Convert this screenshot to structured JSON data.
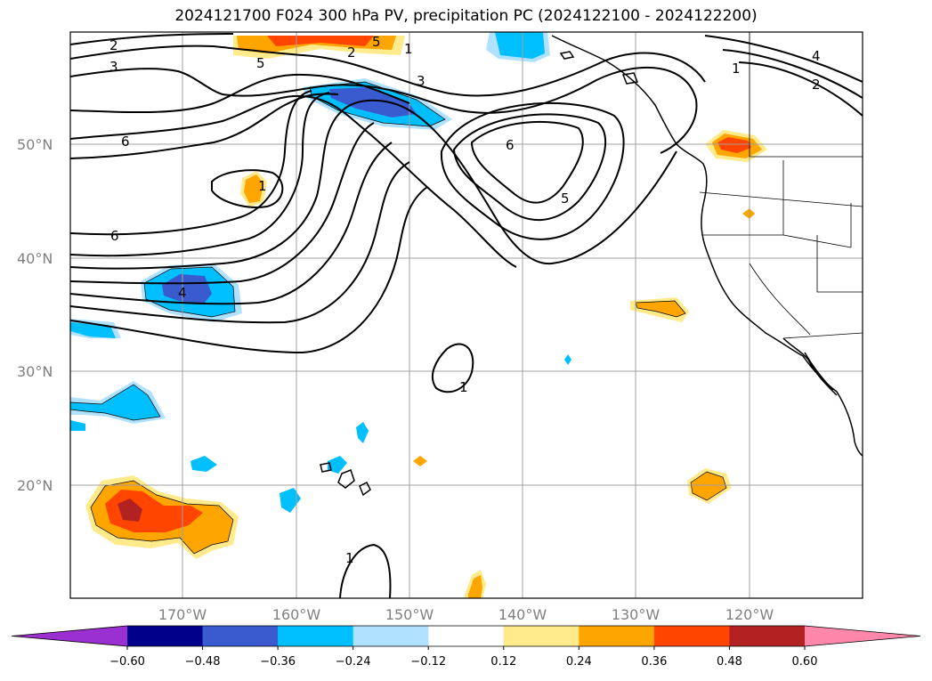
{
  "title": "2024121700 F024 300 hPa PV, precipitation PC (2024122100 - 2024122200)",
  "lat_labels": [
    "50°N",
    "40°N",
    "30°N",
    "20°N"
  ],
  "lon_labels": [
    "170°W",
    "160°W",
    "150°W",
    "140°W",
    "130°W",
    "120°W"
  ],
  "colorbar": {
    "colors": [
      "#9b30d0",
      "#00008b",
      "#3a5bd0",
      "#00bfff",
      "#b0e2ff",
      "#ffffff",
      "#ffeb8c",
      "#ffa500",
      "#ff4500",
      "#b22222",
      "#ff88aa"
    ],
    "labels": [
      "−0.60",
      "−0.48",
      "−0.36",
      "−0.24",
      "−0.12",
      "0.12",
      "0.24",
      "0.36",
      "0.48",
      "0.60"
    ]
  },
  "contour_labels": [
    "2",
    "3",
    "5",
    "6",
    "4",
    "5",
    "3",
    "1",
    "2",
    "1",
    "4",
    "2",
    "6",
    "5",
    "1",
    "1",
    "1"
  ]
}
